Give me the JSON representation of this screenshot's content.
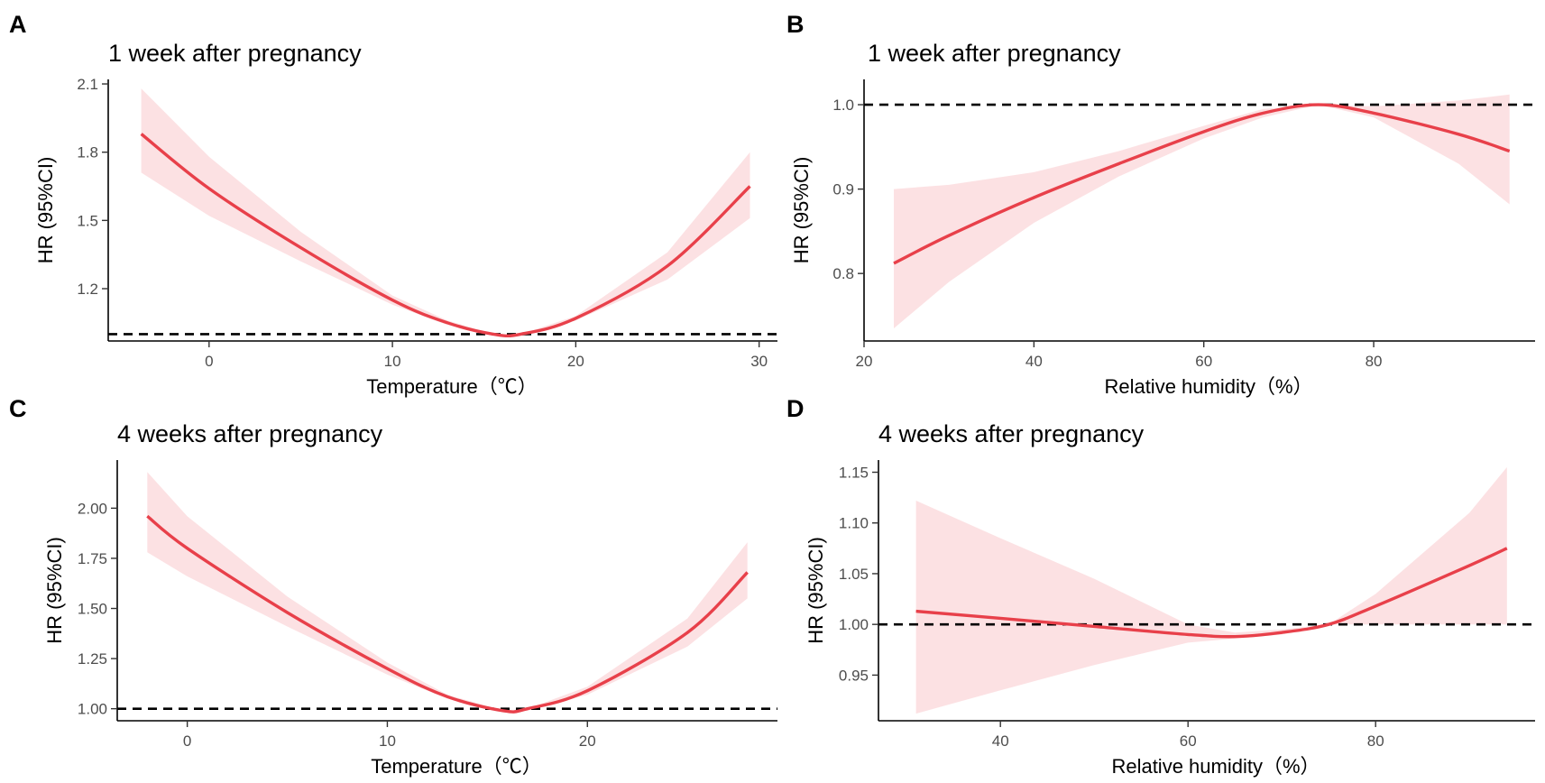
{
  "chart_data": [
    {
      "panel": "A",
      "type": "line",
      "title": "1 week after pregnancy",
      "xlabel": "Temperature（℃）",
      "ylabel": "HR (95%CI)",
      "xlim": [
        -5.5,
        31
      ],
      "ylim": [
        0.97,
        2.12
      ],
      "xticks": [
        0,
        10,
        20,
        30
      ],
      "xtick_labels": [
        "0",
        "10",
        "20",
        "30"
      ],
      "yticks": [
        1.2,
        1.5,
        1.8,
        2.1
      ],
      "ytick_labels": [
        "1.2",
        "1.5",
        "1.8",
        "2.1"
      ],
      "reference_line": 1.0,
      "series": [
        {
          "name": "HR",
          "x": [
            -3.7,
            0,
            5,
            10,
            13,
            15.5,
            17,
            20,
            25,
            29.5
          ],
          "y": [
            1.88,
            1.64,
            1.38,
            1.15,
            1.05,
            1.0,
            1.0,
            1.07,
            1.3,
            1.65
          ],
          "lower": [
            1.71,
            1.52,
            1.32,
            1.13,
            1.04,
            1.0,
            1.0,
            1.06,
            1.24,
            1.51
          ],
          "upper": [
            2.08,
            1.78,
            1.45,
            1.17,
            1.06,
            1.0,
            1.0,
            1.08,
            1.36,
            1.8
          ]
        }
      ]
    },
    {
      "panel": "B",
      "type": "line",
      "title": "1 week after pregnancy",
      "xlabel": "Relative humidity（%）",
      "ylabel": "HR (95%CI)",
      "xlim": [
        20,
        99
      ],
      "ylim": [
        0.72,
        1.03
      ],
      "xticks": [
        20,
        40,
        60,
        80
      ],
      "xtick_labels": [
        "20",
        "40",
        "60",
        "80"
      ],
      "yticks": [
        0.8,
        0.9,
        1.0
      ],
      "ytick_labels": [
        "0.8",
        "0.9",
        "1.0"
      ],
      "reference_line": 1.0,
      "series": [
        {
          "name": "HR",
          "x": [
            23.5,
            30,
            40,
            50,
            60,
            67,
            73.5,
            80,
            90,
            96
          ],
          "y": [
            0.812,
            0.845,
            0.89,
            0.93,
            0.968,
            0.99,
            1.0,
            0.99,
            0.965,
            0.945
          ],
          "lower": [
            0.735,
            0.79,
            0.86,
            0.915,
            0.96,
            0.985,
            1.0,
            0.985,
            0.93,
            0.882
          ],
          "upper": [
            0.9,
            0.905,
            0.92,
            0.945,
            0.975,
            0.995,
            1.0,
            0.998,
            1.005,
            1.012
          ]
        }
      ]
    },
    {
      "panel": "C",
      "type": "line",
      "title": "4 weeks after pregnancy",
      "xlabel": "Temperature（℃）",
      "ylabel": "HR (95%CI)",
      "xlim": [
        -3.5,
        29.5
      ],
      "ylim": [
        0.94,
        2.24
      ],
      "xticks": [
        0,
        10,
        20
      ],
      "xtick_labels": [
        "0",
        "10",
        "20"
      ],
      "yticks": [
        1.0,
        1.25,
        1.5,
        1.75,
        2.0
      ],
      "ytick_labels": [
        "1.00",
        "1.25",
        "1.50",
        "1.75",
        "2.00"
      ],
      "reference_line": 1.0,
      "series": [
        {
          "name": "HR",
          "x": [
            -2,
            0,
            5,
            10,
            13,
            15.8,
            17,
            20,
            25,
            28
          ],
          "y": [
            1.96,
            1.8,
            1.48,
            1.2,
            1.06,
            0.99,
            1.0,
            1.09,
            1.38,
            1.68
          ],
          "lower": [
            1.78,
            1.66,
            1.41,
            1.17,
            1.05,
            0.99,
            0.99,
            1.07,
            1.31,
            1.55
          ],
          "upper": [
            2.18,
            1.96,
            1.56,
            1.23,
            1.07,
            0.99,
            1.0,
            1.11,
            1.45,
            1.83
          ]
        }
      ]
    },
    {
      "panel": "D",
      "type": "line",
      "title": "4 weeks after pregnancy",
      "xlabel": "Relative humidity（%）",
      "ylabel": "HR (95%CI)",
      "xlim": [
        27,
        97
      ],
      "ylim": [
        0.905,
        1.162
      ],
      "xticks": [
        40,
        60,
        80
      ],
      "xtick_labels": [
        "40",
        "60",
        "80"
      ],
      "yticks": [
        0.95,
        1.0,
        1.05,
        1.1,
        1.15
      ],
      "ytick_labels": [
        "0.95",
        "1.00",
        "1.05",
        "1.10",
        "1.15"
      ],
      "reference_line": 1.0,
      "series": [
        {
          "name": "HR",
          "x": [
            31,
            40,
            50,
            60,
            65,
            70,
            75,
            80,
            90,
            94
          ],
          "y": [
            1.013,
            1.006,
            0.998,
            0.99,
            0.988,
            0.992,
            1.0,
            1.018,
            1.058,
            1.075
          ],
          "lower": [
            0.912,
            0.935,
            0.96,
            0.982,
            0.986,
            0.99,
            1.0,
            1.0,
            1.0,
            1.0
          ],
          "upper": [
            1.122,
            1.085,
            1.045,
            1.0,
            0.992,
            0.995,
            1.0,
            1.03,
            1.11,
            1.155
          ]
        }
      ]
    }
  ]
}
